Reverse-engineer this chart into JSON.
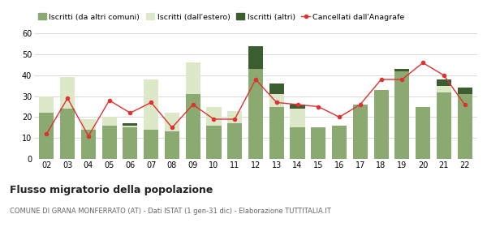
{
  "years": [
    "02",
    "03",
    "04",
    "05",
    "06",
    "07",
    "08",
    "09",
    "10",
    "11",
    "12",
    "13",
    "14",
    "15",
    "16",
    "17",
    "18",
    "19",
    "20",
    "21",
    "22"
  ],
  "iscritti_altri_comuni": [
    22,
    24,
    14,
    16,
    15,
    14,
    13,
    31,
    16,
    17,
    43,
    25,
    15,
    15,
    16,
    26,
    33,
    42,
    25,
    32,
    31
  ],
  "iscritti_estero": [
    8,
    15,
    5,
    4,
    1,
    24,
    9,
    15,
    9,
    6,
    0,
    6,
    9,
    0,
    0,
    0,
    0,
    0,
    0,
    3,
    0
  ],
  "iscritti_altri": [
    0,
    0,
    0,
    0,
    1,
    0,
    0,
    0,
    0,
    0,
    11,
    5,
    2,
    0,
    0,
    0,
    0,
    1,
    0,
    3,
    3
  ],
  "cancellati": [
    12,
    29,
    11,
    28,
    22,
    27,
    15,
    26,
    19,
    19,
    38,
    27,
    26,
    25,
    20,
    26,
    38,
    38,
    46,
    40,
    26
  ],
  "color_altri_comuni": "#8aaa72",
  "color_estero": "#dde8c8",
  "color_altri": "#3a5e30",
  "color_cancellati": "#e03030",
  "color_cancellati_line": "#e03030",
  "color_grid": "#cccccc",
  "color_bg": "#ffffff",
  "title": "Flusso migratorio della popolazione",
  "subtitle": "COMUNE DI GRANA MONFERRATO (AT) - Dati ISTAT (1 gen-31 dic) - Elaborazione TUTTITALIA.IT",
  "legend_labels": [
    "Iscritti (da altri comuni)",
    "Iscritti (dall'estero)",
    "Iscritti (altri)",
    "Cancellati dall'Anagrafe"
  ],
  "ylim": [
    0,
    63
  ],
  "yticks": [
    0,
    10,
    20,
    30,
    40,
    50,
    60
  ]
}
